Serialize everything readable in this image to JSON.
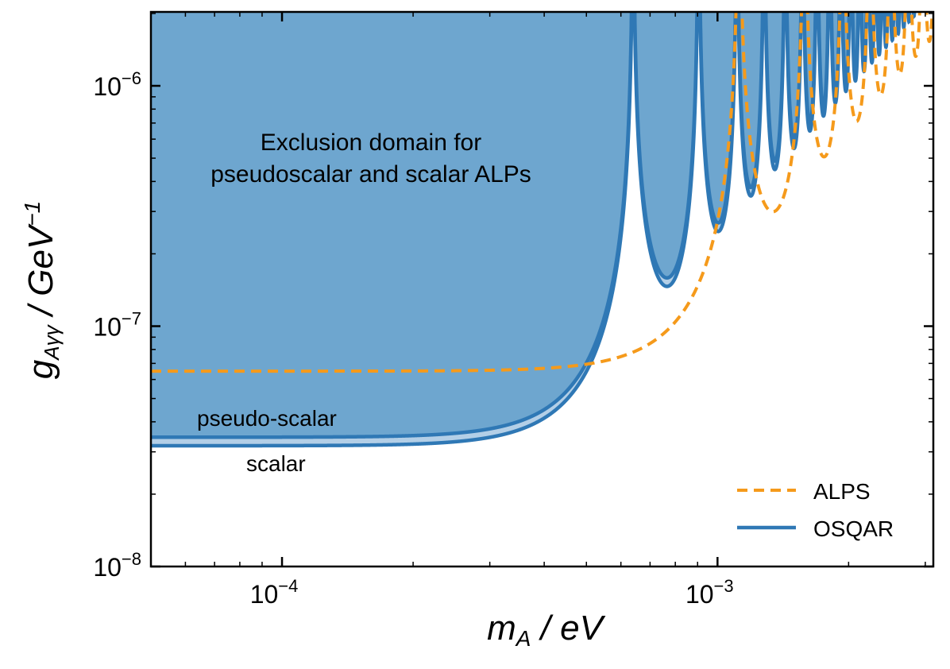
{
  "chart_data": {
    "type": "line",
    "title": "",
    "xlabel": {
      "main": "m",
      "sub": "A",
      "rest": " / eV"
    },
    "ylabel": {
      "main": "g",
      "sub": "Aγγ",
      "rest": " / GeV",
      "sup": "−1"
    },
    "xscale": "log",
    "yscale": "log",
    "xlim": [
      5e-05,
      0.00313
    ],
    "ylim": [
      1e-08,
      2.03e-06
    ],
    "xticks": [
      {
        "value": 0.0001,
        "base": "10",
        "exp": "−4"
      },
      {
        "value": 0.001,
        "base": "10",
        "exp": "−3"
      }
    ],
    "yticks": [
      {
        "value": 1e-06,
        "base": "10",
        "exp": "−6"
      },
      {
        "value": 1e-07,
        "base": "10",
        "exp": "−7"
      },
      {
        "value": 1e-08,
        "base": "10",
        "exp": "−8"
      }
    ],
    "model_note": "sensitivity curves g(m) = g_flat * x/|sin x|, x = pi*(m/m_first_resonance)^2",
    "series": [
      {
        "name": "ALPS",
        "style": "dashed",
        "color": "#f59a1b",
        "g_flat": 6.5e-08,
        "m_first_resonance": 0.00112
      },
      {
        "name": "OSQAR pseudo-scalar",
        "style": "solid",
        "color": "#2f78b5",
        "g_flat": 3.45e-08,
        "m_first_resonance": 0.00064
      },
      {
        "name": "OSQAR scalar",
        "style": "solid",
        "color": "#2f78b5",
        "g_flat": 3.18e-08,
        "m_first_resonance": 0.00064
      }
    ],
    "key_points": [
      {
        "series": "OSQAR pseudo-scalar",
        "m": 0.00078,
        "g": 1.5e-07,
        "note": "first minimum"
      },
      {
        "series": "ALPS",
        "m": 0.00134,
        "g": 3e-07,
        "note": "first minimum"
      }
    ],
    "fill": {
      "region_color": "#6ea6cf",
      "band_color": "#b3cfe7"
    },
    "annotations": {
      "exclusion_line1": "Exclusion domain for",
      "exclusion_line2": "pseudoscalar and scalar ALPs",
      "pseudo_label": "pseudo-scalar",
      "scalar_label": "scalar"
    },
    "legend": {
      "placement": "lower-right",
      "entries": [
        {
          "label": "ALPS",
          "style": "dashed",
          "color": "#f59a1b"
        },
        {
          "label": "OSQAR",
          "style": "solid",
          "color": "#2f78b5"
        }
      ]
    },
    "grid": false
  }
}
